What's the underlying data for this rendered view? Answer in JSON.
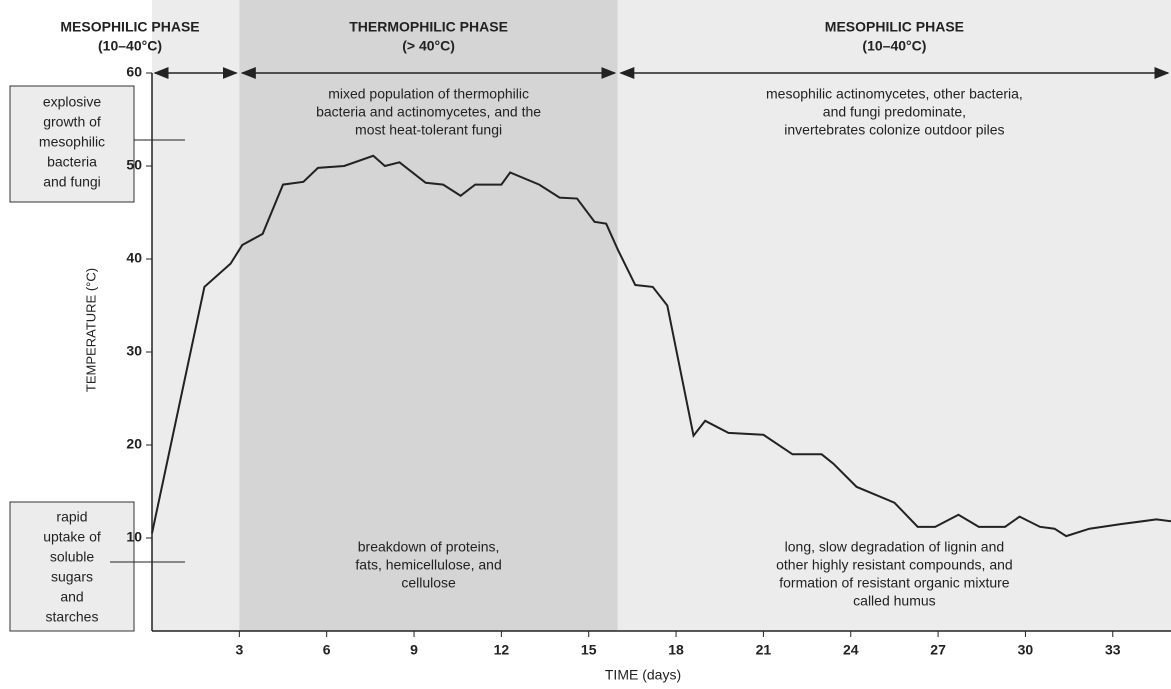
{
  "chart_data": {
    "type": "line",
    "x_label": "TIME  (days)",
    "y_label": "TEMPERATURE (°C)",
    "xlim": [
      0,
      35
    ],
    "ylim": [
      0,
      60
    ],
    "xticks": [
      3,
      6,
      9,
      12,
      15,
      18,
      21,
      24,
      27,
      30,
      33
    ],
    "yticks": [
      10,
      20,
      30,
      40,
      50,
      60
    ],
    "x": [
      0,
      1.8,
      2.7,
      3.1,
      3.8,
      4.5,
      5.2,
      5.7,
      6.6,
      7.6,
      8,
      8.5,
      9.4,
      10,
      10.6,
      11.1,
      12,
      12.3,
      13.3,
      14,
      14.6,
      15.2,
      15.6,
      16,
      16.6,
      17.2,
      17.7,
      18.6,
      19,
      19.8,
      21,
      22,
      23,
      23.4,
      24.2,
      25.5,
      26.3,
      26.9,
      27.7,
      28.4,
      29.3,
      29.8,
      30.5,
      31,
      31.4,
      32.2,
      33.3,
      34.5,
      35
    ],
    "series": [
      {
        "color": "#222222",
        "values": [
          10.5,
          37,
          39.5,
          41.5,
          42.7,
          48,
          48.3,
          49.8,
          50,
          51.1,
          50,
          50.4,
          48.2,
          48,
          46.8,
          48,
          48,
          49.3,
          48,
          46.6,
          46.5,
          44,
          43.8,
          41,
          37.2,
          37,
          35,
          21,
          22.6,
          21.3,
          21.1,
          19,
          19,
          18,
          15.5,
          13.8,
          11.2,
          11.2,
          12.5,
          11.2,
          11.2,
          12.3,
          11.2,
          11,
          10.2,
          11,
          11.5,
          12,
          11.8
        ]
      }
    ],
    "phases": [
      {
        "name": "MESOPHILIC PHASE",
        "range": "(10–40°C)",
        "start": 0,
        "end": 3,
        "color": "#ececec",
        "top_note": [],
        "bottom_note": []
      },
      {
        "name": "THERMOPHILIC PHASE",
        "range": "(> 40°C)",
        "start": 3,
        "end": 16,
        "color": "#d5d5d5",
        "top_note": [
          "mixed population of thermophilic",
          "bacteria and actinomycetes, and the",
          "most heat-tolerant fungi"
        ],
        "bottom_note": [
          "breakdown of proteins,",
          "fats, hemicellulose, and",
          "cellulose"
        ]
      },
      {
        "name": "MESOPHILIC PHASE",
        "range": "(10–40°C)",
        "start": 16,
        "end": 35,
        "color": "#ececec",
        "top_note": [
          "mesophilic actinomycetes, other bacteria,",
          "and fungi predominate,",
          "invertebrates colonize outdoor piles"
        ],
        "bottom_note": [
          "long, slow degradation of lignin and",
          "other highly resistant compounds, and",
          "formation of resistant organic mixture",
          "called humus"
        ]
      }
    ],
    "side_notes": [
      {
        "lines": [
          "explosive",
          "growth of",
          "mesophilic",
          "bacteria",
          "and fungi"
        ]
      },
      {
        "lines": [
          "rapid",
          "uptake of",
          "soluble",
          "sugars",
          "and",
          "starches"
        ]
      }
    ]
  }
}
